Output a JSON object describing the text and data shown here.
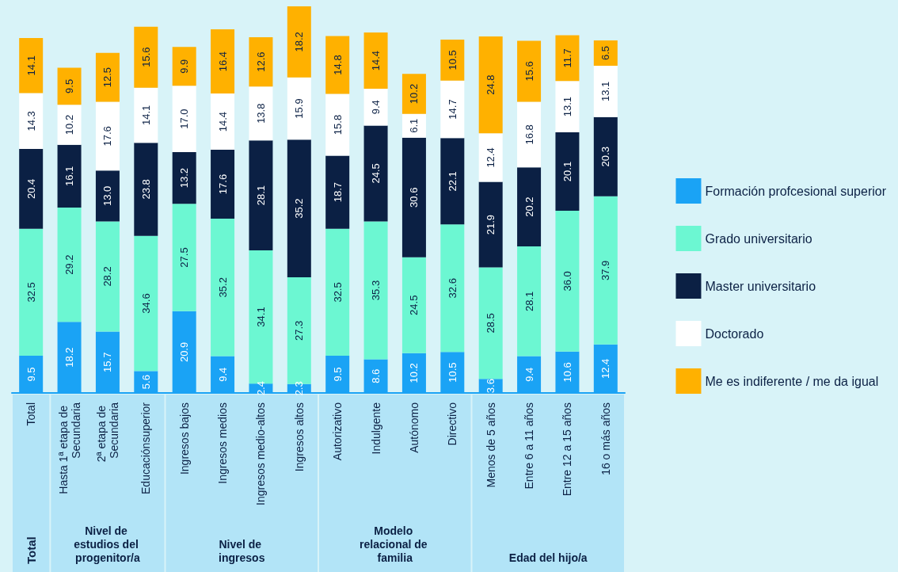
{
  "chart_data": {
    "type": "bar",
    "stacked": true,
    "legend": "right",
    "categories": [
      "Total",
      "Hasta 1ª etapa de Secundaria",
      "2ª etapa de Secundaria",
      "Educaciónsuperior",
      "Ingresos bajos",
      "Ingresos medios",
      "Ingresos medio-altos",
      "Ingresos altos",
      "Autorizativo",
      "Indulgente",
      "Autónomo",
      "Directivo",
      "Menos de 5 años",
      "Entre 6 a 11 años",
      "Entre 12 a 15 años",
      "16 o más años"
    ],
    "series": [
      {
        "name": "Formación profcesional superior",
        "color": "#1aa3f5",
        "values": [
          9.5,
          18.2,
          15.7,
          5.6,
          20.9,
          9.4,
          2.4,
          2.3,
          9.5,
          8.6,
          10.2,
          10.5,
          3.6,
          9.4,
          10.6,
          12.4
        ],
        "value_labels": [
          "9.5",
          "18.2",
          "15.7",
          "5.6",
          "20.9",
          "9.4",
          "2.4",
          "2.3",
          "9.5",
          "8.6",
          "10.2",
          "10.5",
          "3.6",
          "9.4",
          "10.6",
          "12.4"
        ]
      },
      {
        "name": "Grado universitario",
        "color": "#6cf7d2",
        "values": [
          32.5,
          29.2,
          28.2,
          34.6,
          27.5,
          35.2,
          34.1,
          27.3,
          32.5,
          35.3,
          24.5,
          32.6,
          28.5,
          28.1,
          36.0,
          37.9
        ],
        "value_labels": [
          "32.5",
          "29.2",
          "28.2",
          "34.6",
          "27.5",
          "35.2",
          "34.1",
          "27.3",
          "32.5",
          "35.3",
          "24.5",
          "32.6",
          "28.5",
          "28.1",
          "36.0",
          "37.9"
        ]
      },
      {
        "name": "Master universitario",
        "color": "#0b2044",
        "values": [
          20.4,
          16.1,
          13.0,
          23.8,
          13.2,
          17.6,
          28.1,
          35.2,
          18.7,
          24.5,
          30.6,
          22.1,
          21.9,
          20.2,
          20.1,
          20.3
        ],
        "value_labels": [
          "20.4",
          "16.1",
          "13.0",
          "23.8",
          "13.2",
          "17.6",
          "28.1",
          "35.2",
          "18.7",
          "24.5",
          "30.6",
          "22.1",
          "21.9",
          "20.2",
          "20.1",
          "20.3"
        ]
      },
      {
        "name": "Doctorado",
        "color": "#ffffff",
        "values": [
          14.3,
          10.2,
          17.6,
          14.1,
          17.0,
          14.4,
          13.8,
          15.9,
          15.8,
          9.4,
          6.1,
          14.7,
          12.4,
          16.8,
          13.1,
          13.1
        ],
        "value_labels": [
          "14.3",
          "10.2",
          "17.6",
          "14.1",
          "17.0",
          "14.4",
          "13.8",
          "15.9",
          "15.8",
          "9.4",
          "6.1",
          "14.7",
          "12.4",
          "16.8",
          "13.1",
          "13.1"
        ]
      },
      {
        "name": "Me es indiferente / me da igual",
        "color": "#ffb100",
        "values": [
          14.1,
          9.5,
          12.5,
          15.6,
          9.9,
          16.4,
          12.6,
          18.2,
          14.8,
          14.4,
          10.2,
          10.5,
          24.8,
          15.6,
          11.7,
          6.5
        ],
        "value_labels": [
          "14.1",
          "9.5",
          "12.5",
          "15.6",
          "9.9",
          "16.4",
          "12.6",
          "18.2",
          "14.8",
          "14.4",
          "10.2",
          "10.5",
          "24.8",
          "15.6",
          "11.7",
          "6.5"
        ]
      }
    ],
    "annotations": [
      "Total",
      "Nivel de estudios del progenitor/a",
      "Nivel de ingresos",
      "Modelo relacional de familia",
      "Edad del hijo/a"
    ]
  }
}
